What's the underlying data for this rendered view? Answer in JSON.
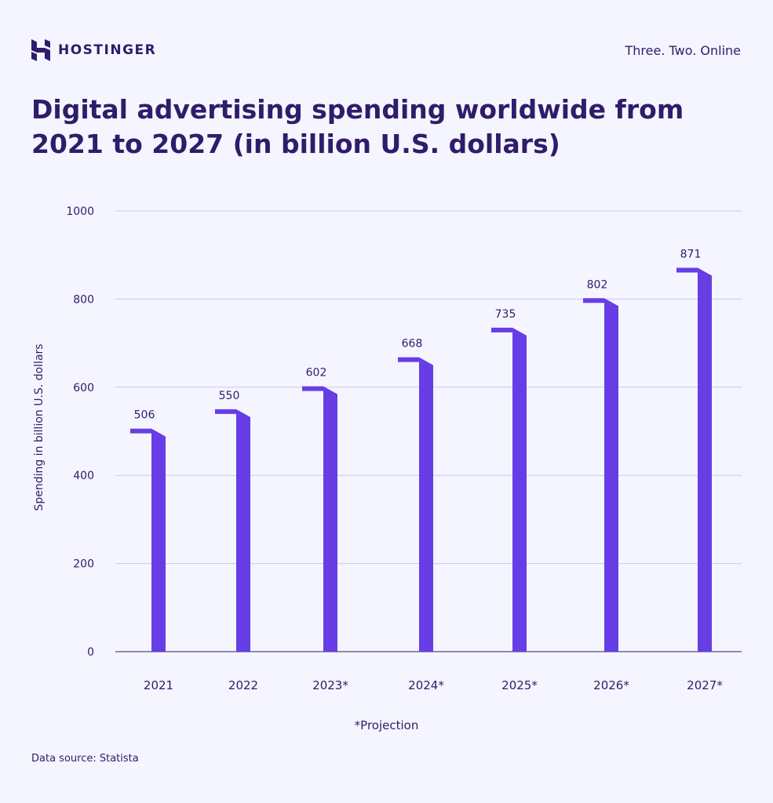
{
  "brand": {
    "name": "HOSTINGER",
    "tagline": "Three. Two. Online"
  },
  "colors": {
    "bar": "#673de6",
    "text": "#2f1c6a",
    "grid": "#c9c8f5",
    "background": "#f4f5fe"
  },
  "chart_data": {
    "type": "bar",
    "title": "Digital advertising spending worldwide from 2021 to 2027 (in billion U.S. dollars)",
    "xlabel": "",
    "ylabel": "Spending in billion U.S. dollars",
    "categories": [
      "2021",
      "2022",
      "2023*",
      "2024*",
      "2025*",
      "2026*",
      "2027*"
    ],
    "values": [
      506,
      550,
      602,
      668,
      735,
      802,
      871
    ],
    "ylim": [
      0,
      1000
    ],
    "yticks": [
      0,
      200,
      400,
      600,
      800,
      1000
    ],
    "grid": true,
    "note": "*Projection"
  },
  "footer": {
    "source": "Data source: Statista"
  }
}
